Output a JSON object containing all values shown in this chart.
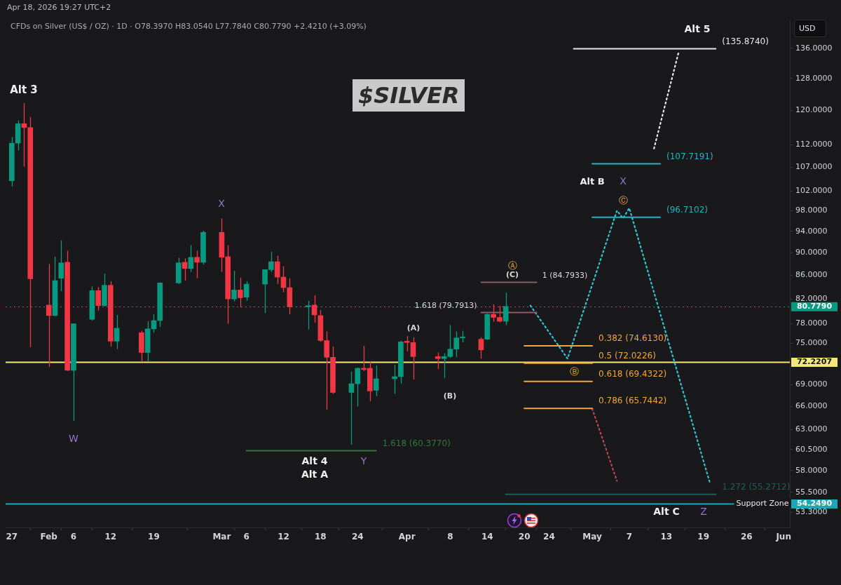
{
  "chart_data": {
    "type": "candlestick",
    "title": "$SILVER",
    "subtitle": "CFDs on Silver (US$ / OZ) · 1D · O78.3970 H83.0540 L77.7840 C80.7790 +2.4210 (+3.09%)",
    "ylabel": "USD",
    "log": true,
    "xlim": [
      "2026-01-26",
      "2026-06-02"
    ],
    "xticks": [
      {
        "value": "2026-01-27",
        "label": "27"
      },
      {
        "value": "2026-02-02",
        "label": "Feb"
      },
      {
        "value": "2026-02-06",
        "label": "6"
      },
      {
        "value": "2026-02-12",
        "label": "12"
      },
      {
        "value": "2026-02-19",
        "label": "19"
      },
      {
        "value": "2026-03-02",
        "label": "Mar"
      },
      {
        "value": "2026-03-06",
        "label": "6"
      },
      {
        "value": "2026-03-12",
        "label": "12"
      },
      {
        "value": "2026-03-18",
        "label": "18"
      },
      {
        "value": "2026-03-24",
        "label": "24"
      },
      {
        "value": "2026-04-01",
        "label": "Apr"
      },
      {
        "value": "2026-04-08",
        "label": "8"
      },
      {
        "value": "2026-04-14",
        "label": "14"
      },
      {
        "value": "2026-04-20",
        "label": "20"
      },
      {
        "value": "2026-04-24",
        "label": "24"
      },
      {
        "value": "2026-05-01",
        "label": "May"
      },
      {
        "value": "2026-05-07",
        "label": "7"
      },
      {
        "value": "2026-05-13",
        "label": "13"
      },
      {
        "value": "2026-05-19",
        "label": "19"
      },
      {
        "value": "2026-05-26",
        "label": "26"
      },
      {
        "value": "2026-06-01",
        "label": "Jun"
      }
    ],
    "ylim": [
      51.7,
      143.7
    ],
    "yticks": [
      {
        "value": 53.3,
        "label": "53.3000"
      },
      {
        "value": 55.5,
        "label": "55.5000"
      },
      {
        "value": 58,
        "label": "58.0000"
      },
      {
        "value": 60.5,
        "label": "60.5000"
      },
      {
        "value": 63,
        "label": "63.0000"
      },
      {
        "value": 66,
        "label": "66.0000"
      },
      {
        "value": 69,
        "label": "69.0000"
      },
      {
        "value": 75,
        "label": "75.0000"
      },
      {
        "value": 78,
        "label": "78.0000"
      },
      {
        "value": 82,
        "label": "82.0000"
      },
      {
        "value": 86,
        "label": "86.0000"
      },
      {
        "value": 90,
        "label": "90.0000"
      },
      {
        "value": 94,
        "label": "94.0000"
      },
      {
        "value": 98,
        "label": "98.0000"
      },
      {
        "value": 102,
        "label": "102.0000"
      },
      {
        "value": 107,
        "label": "107.0000"
      },
      {
        "value": 112,
        "label": "112.0000"
      },
      {
        "value": 120,
        "label": "120.0000"
      },
      {
        "value": 128,
        "label": "128.0000"
      },
      {
        "value": 136,
        "label": "136.0000"
      }
    ],
    "series": [
      {
        "type": "line",
        "color": "#2c7a3a",
        "line_style": "solid",
        "name": "1.618 (60.3770)",
        "x": [
          "2026-03-06",
          "2026-03-27"
        ],
        "values": [
          60.377,
          60.377
        ]
      },
      {
        "type": "line",
        "color": "#1f5f5b",
        "line_style": "solid",
        "name": "1.272 (55.2712)",
        "x": [
          "2026-04-17",
          "2026-05-21"
        ],
        "values": [
          55.2712,
          55.2712
        ]
      },
      {
        "type": "line",
        "color": "#f0a63a",
        "line_style": "solid",
        "name": "0.382 (74.6130)",
        "x": [
          "2026-04-20",
          "2026-05-01"
        ],
        "values": [
          74.613,
          74.613
        ]
      },
      {
        "type": "line",
        "color": "#f0a63a",
        "line_style": "solid",
        "name": "0.5 (72.0226)",
        "x": [
          "2026-04-20",
          "2026-05-01"
        ],
        "values": [
          72.0226,
          72.0226
        ]
      },
      {
        "type": "line",
        "color": "#f0a63a",
        "line_style": "solid",
        "name": "0.618 (69.4322)",
        "x": [
          "2026-04-20",
          "2026-05-01"
        ],
        "values": [
          69.4322,
          69.4322
        ]
      },
      {
        "type": "line",
        "color": "#f0a63a",
        "line_style": "solid",
        "name": "0.786 (65.7442)",
        "x": [
          "2026-04-20",
          "2026-05-01"
        ],
        "values": [
          65.7442,
          65.7442
        ]
      },
      {
        "type": "line",
        "color": "#22b3c4",
        "line_style": "solid",
        "name": "(107.7191)",
        "x": [
          "2026-05-01",
          "2026-05-12"
        ],
        "values": [
          107.7191,
          107.7191
        ]
      },
      {
        "type": "line",
        "color": "#22b3c4",
        "line_style": "solid",
        "name": "(96.7102)",
        "x": [
          "2026-05-01",
          "2026-05-12"
        ],
        "values": [
          96.7102,
          96.7102
        ]
      },
      {
        "type": "line",
        "color": "#e8e8e8",
        "line_style": "solid",
        "name": "(135.8740)",
        "x": [
          "2026-04-28",
          "2026-05-21"
        ],
        "values": [
          135.874,
          135.874
        ]
      },
      {
        "type": "line",
        "color": "#8e5a66",
        "line_style": "solid",
        "x": [
          "2026-04-13",
          "2026-04-22"
        ],
        "values": [
          84.7933,
          84.7933
        ]
      },
      {
        "type": "line",
        "color": "#8e5a66",
        "line_style": "solid",
        "x": [
          "2026-04-13",
          "2026-04-22"
        ],
        "values": [
          79.7913,
          79.7913
        ]
      },
      {
        "type": "line",
        "color": "#2ec4d6",
        "line_style": "dotted",
        "x": [
          "2026-04-21",
          "2026-04-27",
          "2026-05-05",
          "2026-05-06",
          "2026-05-07",
          "2026-05-20"
        ],
        "values": [
          80.9,
          72.7,
          98.0,
          96.5,
          98.5,
          56.7
        ]
      },
      {
        "type": "line",
        "color": "#b8465c",
        "line_style": "dotted",
        "x": [
          "2026-05-01",
          "2026-05-05"
        ],
        "values": [
          65.7,
          56.8
        ]
      },
      {
        "type": "line",
        "color": "#e8e8e8",
        "line_style": "dotted",
        "x": [
          "2026-05-11",
          "2026-05-15"
        ],
        "values": [
          111.1,
          135.0
        ]
      },
      {
        "x": [
          "2026-01-27",
          "2026-01-28",
          "2026-01-29",
          "2026-01-30",
          "2026-02-02",
          "2026-02-03",
          "2026-02-04",
          "2026-02-05",
          "2026-02-06",
          "2026-02-09",
          "2026-02-10",
          "2026-02-11",
          "2026-02-12",
          "2026-02-13",
          "2026-02-17",
          "2026-02-18",
          "2026-02-19",
          "2026-02-20",
          "2026-02-23",
          "2026-02-24",
          "2026-02-25",
          "2026-02-26",
          "2026-02-27",
          "2026-03-02",
          "2026-03-03",
          "2026-03-04",
          "2026-03-05",
          "2026-03-06",
          "2026-03-09",
          "2026-03-10",
          "2026-03-11",
          "2026-03-12",
          "2026-03-13",
          "2026-03-16",
          "2026-03-17",
          "2026-03-18",
          "2026-03-19",
          "2026-03-20",
          "2026-03-23",
          "2026-03-24",
          "2026-03-25",
          "2026-03-26",
          "2026-03-27",
          "2026-03-30",
          "2026-03-31",
          "2026-04-01",
          "2026-04-02",
          "2026-04-06",
          "2026-04-07",
          "2026-04-08",
          "2026-04-09",
          "2026-04-10",
          "2026-04-13",
          "2026-04-14",
          "2026-04-15",
          "2026-04-16",
          "2026-04-17"
        ],
        "ohlc": [
          [
            104.1,
            113.7,
            102.9,
            112.3
          ],
          [
            112.3,
            117.6,
            110.7,
            116.8
          ],
          [
            116.8,
            121.8,
            107.1,
            115.9
          ],
          [
            115.9,
            118.4,
            74.4,
            85.4
          ],
          [
            81.0,
            88.0,
            71.5,
            79.3
          ],
          [
            79.3,
            89.3,
            79.2,
            85.1
          ],
          [
            85.5,
            92.3,
            83.3,
            88.2
          ],
          [
            88.3,
            90.4,
            70.9,
            71.0
          ],
          [
            71.0,
            78.0,
            64.1,
            78.0
          ],
          [
            78.7,
            84.1,
            78.5,
            83.4
          ],
          [
            83.4,
            84.0,
            80.1,
            80.9
          ],
          [
            80.9,
            86.3,
            80.8,
            84.3
          ],
          [
            84.3,
            85.0,
            74.5,
            75.3
          ],
          [
            75.3,
            79.4,
            74.1,
            77.3
          ],
          [
            76.6,
            76.9,
            72.2,
            73.6
          ],
          [
            73.6,
            78.4,
            72.3,
            77.2
          ],
          [
            77.2,
            79.5,
            76.6,
            78.5
          ],
          [
            78.5,
            84.8,
            77.5,
            84.7
          ],
          [
            84.7,
            89.1,
            84.5,
            88.2
          ],
          [
            88.3,
            89.0,
            85.1,
            87.2
          ],
          [
            87.2,
            91.4,
            86.6,
            89.2
          ],
          [
            89.2,
            90.4,
            85.5,
            88.3
          ],
          [
            88.3,
            94.1,
            87.9,
            93.8
          ],
          [
            93.8,
            96.5,
            86.6,
            89.2
          ],
          [
            89.3,
            91.4,
            78.0,
            82.0
          ],
          [
            82.0,
            86.8,
            81.6,
            83.5
          ],
          [
            83.5,
            85.6,
            80.6,
            82.2
          ],
          [
            82.3,
            85.0,
            81.7,
            84.5
          ],
          [
            84.5,
            87.0,
            79.7,
            87.0
          ],
          [
            87.0,
            90.2,
            86.6,
            88.4
          ],
          [
            88.4,
            89.5,
            84.5,
            85.7
          ],
          [
            85.7,
            87.6,
            83.1,
            83.9
          ],
          [
            83.9,
            85.5,
            79.5,
            80.7
          ],
          [
            80.7,
            81.7,
            77.1,
            80.9
          ],
          [
            81.0,
            82.6,
            78.2,
            79.4
          ],
          [
            79.3,
            80.2,
            75.2,
            75.4
          ],
          [
            75.4,
            76.8,
            65.6,
            72.9
          ],
          [
            72.9,
            74.5,
            67.7,
            67.9
          ],
          [
            67.9,
            70.8,
            61.1,
            69.1
          ],
          [
            69.1,
            71.4,
            66.0,
            71.3
          ],
          [
            71.3,
            74.6,
            70.9,
            71.1
          ],
          [
            71.3,
            72.2,
            66.7,
            68.1
          ],
          [
            68.2,
            71.7,
            67.4,
            69.8
          ],
          [
            69.8,
            71.8,
            67.7,
            70.1
          ],
          [
            70.1,
            75.4,
            69.1,
            75.2
          ],
          [
            75.3,
            76.1,
            73.8,
            75.1
          ],
          [
            75.1,
            75.9,
            69.7,
            73.0
          ],
          [
            73.0,
            73.6,
            71.2,
            72.7
          ],
          [
            72.7,
            73.5,
            69.9,
            73.0
          ],
          [
            73.0,
            77.8,
            72.8,
            74.1
          ],
          [
            74.1,
            76.8,
            72.9,
            75.8
          ],
          [
            75.8,
            76.9,
            75.1,
            75.9
          ],
          [
            75.6,
            75.9,
            72.7,
            74.0
          ],
          [
            75.6,
            79.6,
            75.5,
            79.5
          ],
          [
            79.5,
            81.1,
            78.3,
            79.0
          ],
          [
            79.0,
            80.9,
            78.2,
            78.4
          ],
          [
            78.397,
            83.054,
            77.784,
            80.779
          ]
        ],
        "colors": [
          "#089981",
          "#089981",
          "#f23645",
          "#f23645",
          "#f23645",
          "#089981",
          "#089981",
          "#f23645",
          "#089981",
          "#089981",
          "#f23645",
          "#089981",
          "#f23645",
          "#089981",
          "#f23645",
          "#089981",
          "#089981",
          "#089981",
          "#089981",
          "#f23645",
          "#089981",
          "#f23645",
          "#089981",
          "#f23645",
          "#f23645",
          "#089981",
          "#f23645",
          "#089981",
          "#089981",
          "#089981",
          "#f23645",
          "#f23645",
          "#f23645",
          "#089981",
          "#f23645",
          "#f23645",
          "#f23645",
          "#f23645",
          "#089981",
          "#089981",
          "#f23645",
          "#f23645",
          "#089981",
          "#089981",
          "#089981",
          "#f23645",
          "#f23645",
          "#f23645",
          "#089981",
          "#089981",
          "#089981",
          "#089981",
          "#f23645",
          "#089981",
          "#f23645",
          "#f23645",
          "#089981"
        ]
      }
    ],
    "ref_lines": [
      {
        "axis": "y",
        "value": 80.779,
        "label": "80.7790",
        "color": "#089981",
        "line_style": "dotted"
      },
      {
        "axis": "y",
        "value": 72.2207,
        "label": "72.2207",
        "color": "#f3e67a",
        "line_style": "solid"
      },
      {
        "axis": "y",
        "value": 54.249,
        "label": "54.2490",
        "color": "#1fa5b5",
        "line_style": "solid"
      }
    ],
    "annotations": [
      "Apr 18, 2026 19:27 UTC+2",
      "Alt 3",
      "W",
      "X",
      "Alt 4",
      "Alt A",
      "Y",
      "(A)",
      "(B)",
      "Ⓐ",
      "(C)",
      "1.618 (79.7913)",
      "1 (84.7933)",
      "Ⓑ",
      "Alt B",
      "X",
      "Ⓒ",
      "Alt 5",
      "Support Zone",
      "Alt C",
      "Z"
    ]
  }
}
